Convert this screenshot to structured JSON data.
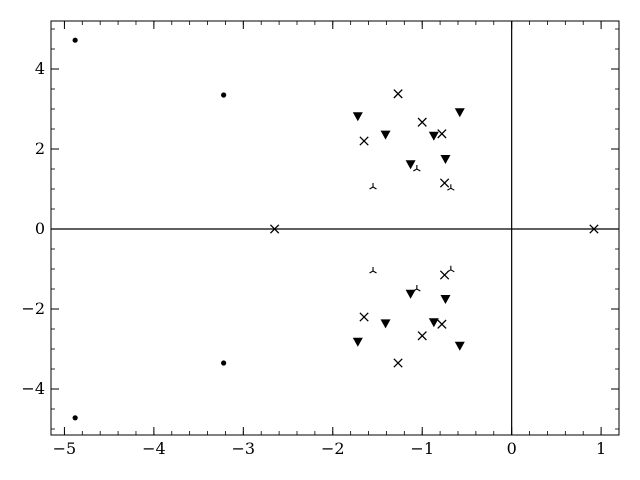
{
  "chart_data": {
    "type": "scatter",
    "title": "",
    "xlabel": "",
    "ylabel": "",
    "xlim": [
      -5.15,
      1.2
    ],
    "ylim": [
      -5.15,
      5.2
    ],
    "grid": false,
    "x_ticks": [
      -5,
      -4,
      -3,
      -2,
      -1,
      0,
      1
    ],
    "y_ticks": [
      -4,
      -2,
      0,
      2,
      4
    ],
    "x_tick_labels": [
      "−5",
      "−4",
      "−3",
      "−2",
      "−1",
      "0",
      "1"
    ],
    "y_tick_labels": [
      "−4",
      "−2",
      "0",
      "2",
      "4"
    ],
    "reference_lines": {
      "x": 0,
      "y": 0
    },
    "series": [
      {
        "marker": "dot",
        "color": "#000000",
        "points": [
          [
            -4.88,
            4.72
          ],
          [
            -3.22,
            3.35
          ],
          [
            -3.22,
            -3.35
          ],
          [
            -4.88,
            -4.72
          ]
        ]
      },
      {
        "marker": "x",
        "color": "#000000",
        "points": [
          [
            -2.65,
            0.0
          ],
          [
            0.92,
            0.0
          ],
          [
            -1.27,
            3.38
          ],
          [
            -1.65,
            2.2
          ],
          [
            -1.0,
            2.67
          ],
          [
            -0.78,
            2.38
          ],
          [
            -0.75,
            1.15
          ],
          [
            -1.27,
            -3.35
          ],
          [
            -1.65,
            -2.2
          ],
          [
            -1.0,
            -2.67
          ],
          [
            -0.78,
            -2.38
          ],
          [
            -0.75,
            -1.15
          ]
        ]
      },
      {
        "marker": "triangle-down",
        "color": "#000000",
        "points": [
          [
            -1.72,
            2.82
          ],
          [
            -1.41,
            2.36
          ],
          [
            -1.13,
            1.62
          ],
          [
            -0.87,
            2.33
          ],
          [
            -0.74,
            1.75
          ],
          [
            -0.58,
            2.92
          ],
          [
            -1.72,
            -2.82
          ],
          [
            -1.41,
            -2.36
          ],
          [
            -1.13,
            -1.62
          ],
          [
            -0.87,
            -2.33
          ],
          [
            -0.74,
            -1.75
          ],
          [
            -0.58,
            -2.92
          ]
        ]
      },
      {
        "marker": "tri-down",
        "color": "#000000",
        "points": [
          [
            -1.55,
            1.05
          ],
          [
            -1.06,
            1.5
          ],
          [
            -0.68,
            1.02
          ],
          [
            -1.55,
            -1.05
          ],
          [
            -1.06,
            -1.5
          ],
          [
            -0.68,
            -1.02
          ]
        ]
      }
    ]
  }
}
